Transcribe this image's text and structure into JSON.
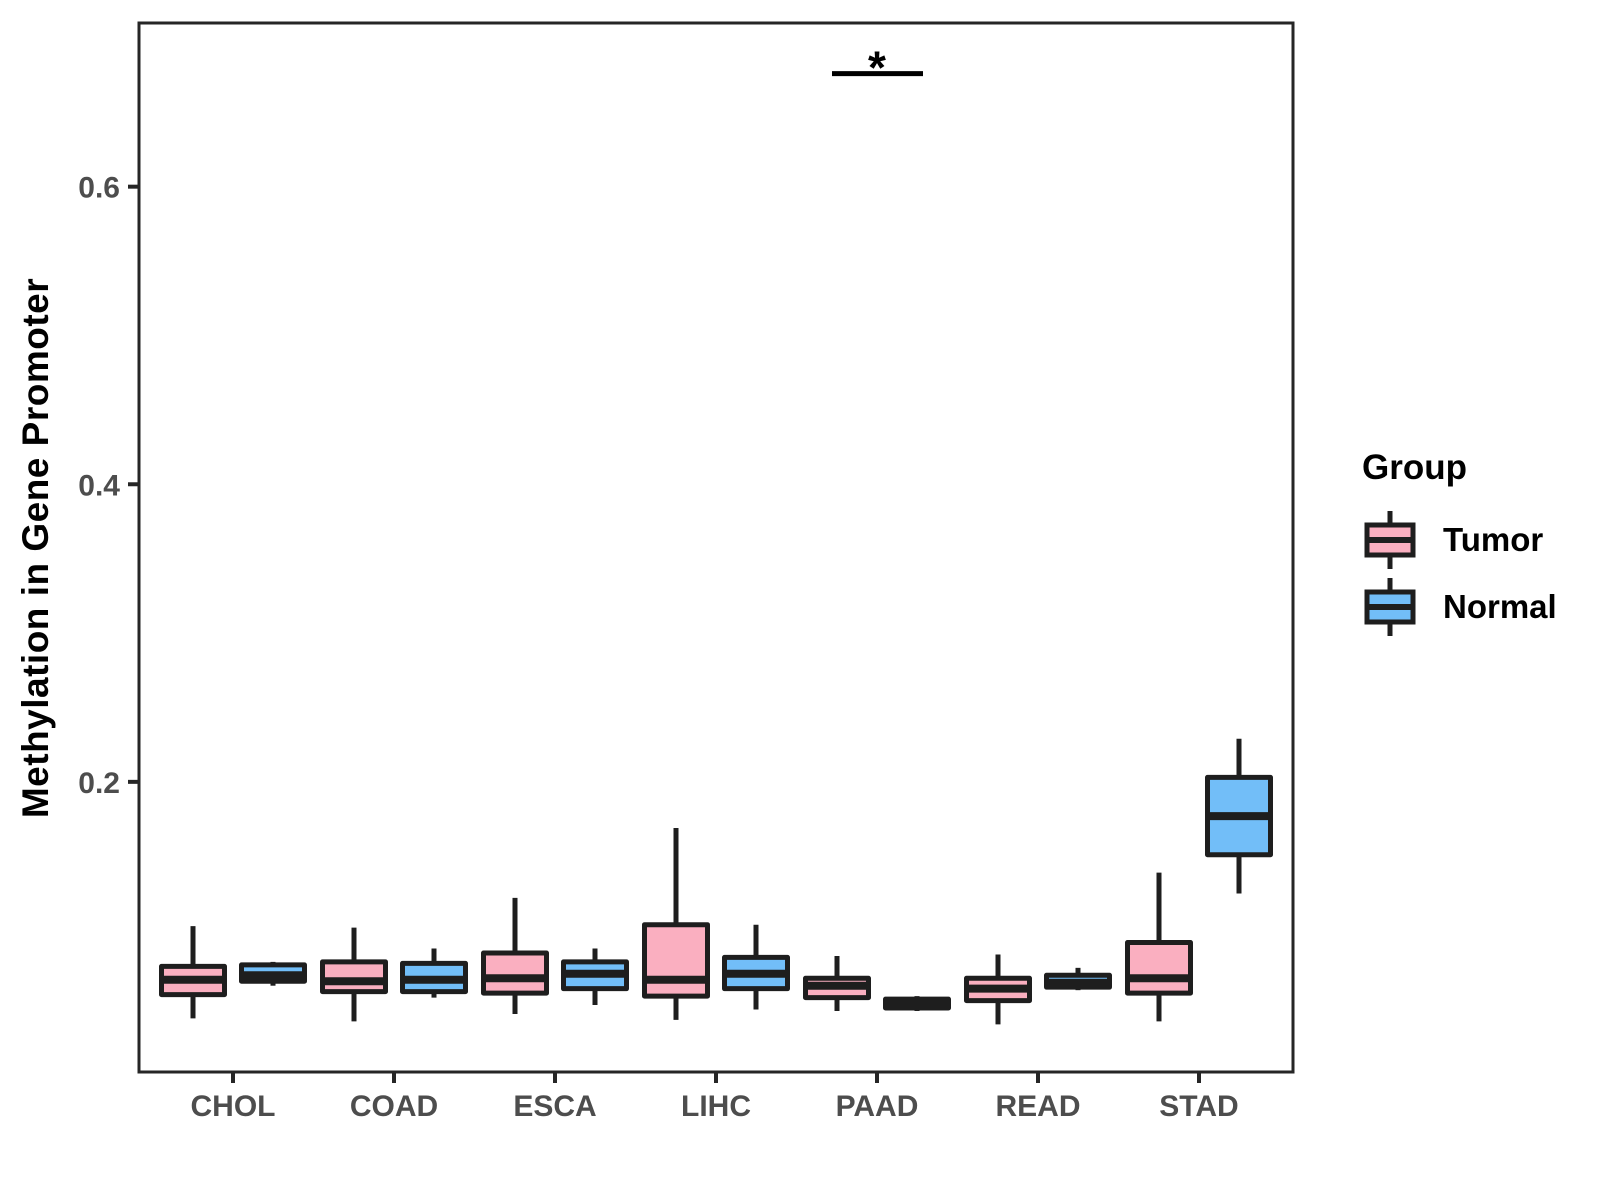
{
  "legend": {
    "title": "Group",
    "entries": [
      {
        "label": "Tumor",
        "color": "#FAAFC0"
      },
      {
        "label": "Normal",
        "color": "#72BEF8"
      }
    ]
  },
  "chart_data": {
    "type": "boxplot",
    "title": "",
    "xlabel": "",
    "ylabel": "Methylation in Gene Promoter",
    "categories": [
      "CHOL",
      "COAD",
      "ESCA",
      "LIHC",
      "PAAD",
      "READ",
      "STAD"
    ],
    "groups": [
      "Tumor",
      "Normal"
    ],
    "yticks": [
      0.2,
      0.4,
      0.6
    ],
    "ylim": [
      0.005,
      0.71
    ],
    "grid": false,
    "legend_position": "right",
    "colors": {
      "Tumor": "#FAAFC0",
      "Normal": "#72BEF8",
      "line": "#1E1E1E",
      "panel_border": "#262626",
      "axis_text": "#4d4d4d"
    },
    "series": [
      {
        "name": "Tumor",
        "boxes": [
          {
            "category": "CHOL",
            "whisker_low": 0.041,
            "q1": 0.057,
            "median": 0.067,
            "q3": 0.076,
            "whisker_high": 0.103
          },
          {
            "category": "COAD",
            "whisker_low": 0.039,
            "q1": 0.059,
            "median": 0.066,
            "q3": 0.079,
            "whisker_high": 0.102
          },
          {
            "category": "ESCA",
            "whisker_low": 0.044,
            "q1": 0.058,
            "median": 0.068,
            "q3": 0.085,
            "whisker_high": 0.122
          },
          {
            "category": "LIHC",
            "whisker_low": 0.04,
            "q1": 0.056,
            "median": 0.067,
            "q3": 0.104,
            "whisker_high": 0.169
          },
          {
            "category": "PAAD",
            "whisker_low": 0.046,
            "q1": 0.055,
            "median": 0.063,
            "q3": 0.068,
            "whisker_high": 0.083
          },
          {
            "category": "READ",
            "whisker_low": 0.037,
            "q1": 0.053,
            "median": 0.061,
            "q3": 0.068,
            "whisker_high": 0.084
          },
          {
            "category": "STAD",
            "whisker_low": 0.039,
            "q1": 0.058,
            "median": 0.068,
            "q3": 0.092,
            "whisker_high": 0.139
          }
        ]
      },
      {
        "name": "Normal",
        "boxes": [
          {
            "category": "CHOL",
            "whisker_low": 0.063,
            "q1": 0.066,
            "median": 0.07,
            "q3": 0.077,
            "whisker_high": 0.079
          },
          {
            "category": "COAD",
            "whisker_low": 0.055,
            "q1": 0.059,
            "median": 0.067,
            "q3": 0.078,
            "whisker_high": 0.088
          },
          {
            "category": "ESCA",
            "whisker_low": 0.05,
            "q1": 0.061,
            "median": 0.071,
            "q3": 0.079,
            "whisker_high": 0.088
          },
          {
            "category": "LIHC",
            "whisker_low": 0.047,
            "q1": 0.061,
            "median": 0.071,
            "q3": 0.082,
            "whisker_high": 0.104
          },
          {
            "category": "PAAD",
            "whisker_low": 0.046,
            "q1": 0.048,
            "median": 0.051,
            "q3": 0.054,
            "whisker_high": 0.056
          },
          {
            "category": "READ",
            "whisker_low": 0.06,
            "q1": 0.062,
            "median": 0.065,
            "q3": 0.07,
            "whisker_high": 0.075
          },
          {
            "category": "STAD",
            "whisker_low": 0.125,
            "q1": 0.151,
            "median": 0.177,
            "q3": 0.203,
            "whisker_high": 0.229
          }
        ]
      }
    ],
    "significance": [
      {
        "category": "PAAD",
        "label": "*",
        "bar_value": 0.676
      }
    ]
  }
}
